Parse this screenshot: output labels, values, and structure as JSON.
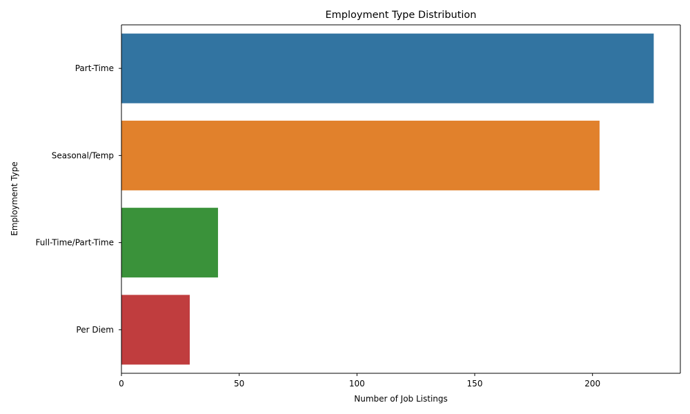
{
  "chart_data": {
    "type": "bar",
    "orientation": "horizontal",
    "title": "Employment Type Distribution",
    "xlabel": "Number of Job Listings",
    "ylabel": "Employment Type",
    "categories": [
      "Part-Time",
      "Seasonal/Temp",
      "Full-Time/Part-Time",
      "Per Diem"
    ],
    "values": [
      226,
      203,
      41,
      29
    ],
    "colors": [
      "#3274a1",
      "#e1812c",
      "#3a923a",
      "#c03d3e"
    ],
    "xlim": [
      0,
      237.3
    ],
    "xticks": [
      0,
      50,
      100,
      150,
      200
    ],
    "grid": false,
    "legend": "none"
  }
}
